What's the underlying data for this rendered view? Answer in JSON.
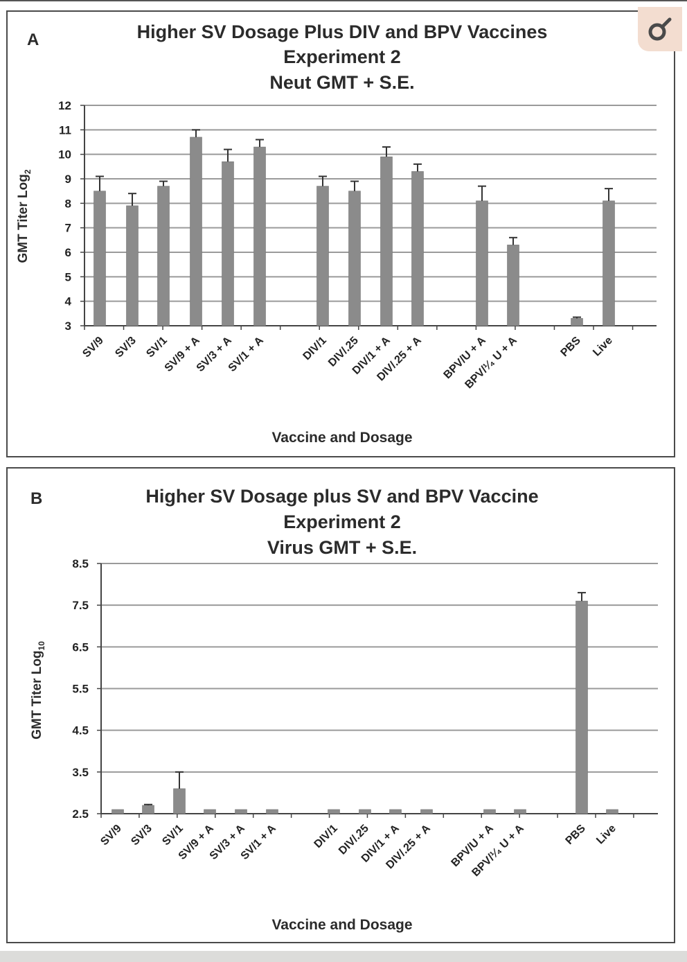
{
  "colors": {
    "bar": "#8b8b8b",
    "grid": "#9a9a9a",
    "axis": "#444444",
    "badge_bg": "#f3ddd0",
    "badge_icon": "#4a4a4a"
  },
  "badge": {
    "icon": "male-symbol-icon"
  },
  "chart_data": [
    {
      "panel_label": "A",
      "type": "bar",
      "title": [
        "Higher SV Dosage Plus DIV and BPV Vaccines",
        "Experiment 2",
        "Neut GMT + S.E."
      ],
      "ylabel": "GMT Titer Log",
      "ylabel_sub": "2",
      "xlabel": "Vaccine and Dosage",
      "ylim": [
        3,
        12
      ],
      "yticks": [
        "3",
        "4",
        "5",
        "6",
        "7",
        "8",
        "9",
        "10",
        "11",
        "12"
      ],
      "grid": true,
      "categories": [
        "SV/9",
        "SV/3",
        "SV/1",
        "SV/9 + A",
        "SV/3 + A",
        "SV/1 + A",
        "DIV/1",
        "DIV/.25",
        "DIV/1 + A",
        "DIV/.25 + A",
        "BPV/U + A",
        "BPV/¹⁄₄ U + A",
        "PBS",
        "Live"
      ],
      "values": [
        8.5,
        7.9,
        8.7,
        10.7,
        9.7,
        10.3,
        8.7,
        8.5,
        9.9,
        9.3,
        8.1,
        6.3,
        3.3,
        8.1
      ],
      "errors": [
        0.6,
        0.5,
        0.2,
        0.3,
        0.5,
        0.3,
        0.4,
        0.4,
        0.4,
        0.3,
        0.6,
        0.3,
        0.05,
        0.5
      ]
    },
    {
      "panel_label": "B",
      "type": "bar",
      "title": [
        "Higher SV Dosage plus SV and BPV Vaccine",
        "Experiment 2",
        "Virus GMT + S.E."
      ],
      "ylabel": "GMT Titer Log",
      "ylabel_sub": "10",
      "xlabel": "Vaccine and Dosage",
      "ylim": [
        2.5,
        8.5
      ],
      "yticks": [
        "2.5",
        "3.5",
        "4.5",
        "5.5",
        "6.5",
        "7.5",
        "8.5"
      ],
      "grid": true,
      "categories": [
        "SV/9",
        "SV/3",
        "SV/1",
        "SV/9 + A",
        "SV/3 + A",
        "SV/1 + A",
        "DIV/1",
        "DIV/.25",
        "DIV/1 + A",
        "DIV/.25 + A",
        "BPV/U + A",
        "BPV/¹⁄₄ U + A",
        "PBS",
        "Live"
      ],
      "values": [
        2.6,
        2.7,
        3.1,
        2.6,
        2.6,
        2.6,
        2.6,
        2.6,
        2.6,
        2.6,
        2.6,
        2.6,
        7.6,
        2.6
      ],
      "errors": [
        0,
        0.02,
        0.4,
        0,
        0,
        0,
        0,
        0,
        0,
        0,
        0,
        0,
        0.2,
        0
      ]
    }
  ]
}
